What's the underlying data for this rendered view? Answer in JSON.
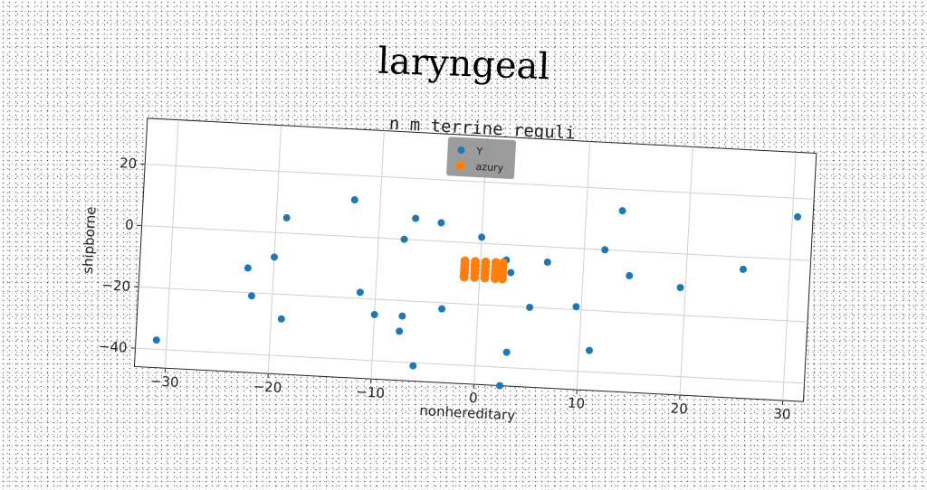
{
  "title": "laryngeal",
  "chart_data": {
    "type": "scatter",
    "title": "n m terrine reguli",
    "xlabel": "nonhereditary",
    "ylabel": "shipborne",
    "xlim": [
      -33,
      32
    ],
    "ylim": [
      -46,
      35
    ],
    "xticks": [
      -30,
      -20,
      -10,
      0,
      10,
      20,
      30
    ],
    "yticks": [
      -40,
      -20,
      0,
      20
    ],
    "xtick_labels": [
      "−30",
      "−20",
      "−10",
      "0",
      "10",
      "20",
      "30"
    ],
    "ytick_labels": [
      "−40",
      "−20",
      "0",
      "20"
    ],
    "grid": true,
    "legend_position": "top-center",
    "series": [
      {
        "name": "Y",
        "color": "#1f77b4",
        "points": [
          [
            -31,
            -37
          ],
          [
            -22.5,
            -12
          ],
          [
            -22,
            -21
          ],
          [
            -20,
            -8
          ],
          [
            -19,
            5
          ],
          [
            -19,
            -28
          ],
          [
            -12.5,
            12
          ],
          [
            -11.5,
            -18
          ],
          [
            -10,
            -25
          ],
          [
            -7.5,
            0
          ],
          [
            -7.3,
            -25
          ],
          [
            -7.5,
            -30
          ],
          [
            -6.5,
            7
          ],
          [
            -6,
            -41
          ],
          [
            -4,
            6
          ],
          [
            -3.5,
            -22
          ],
          [
            0,
            2
          ],
          [
            0.5,
            -7
          ],
          [
            2.5,
            -5
          ],
          [
            3,
            -9
          ],
          [
            5,
            -20
          ],
          [
            6.5,
            -5
          ],
          [
            9.5,
            -19
          ],
          [
            3,
            -35
          ],
          [
            11,
            -33
          ],
          [
            12,
            0
          ],
          [
            13.5,
            13
          ],
          [
            14.5,
            -8
          ],
          [
            19.5,
            -11
          ],
          [
            25.5,
            -4
          ],
          [
            30.5,
            14
          ],
          [
            2.5,
            -46
          ]
        ]
      },
      {
        "name": "azury",
        "color": "#ff7f0e",
        "points": [
          [
            -1.5,
            -6
          ],
          [
            -0.5,
            -6
          ],
          [
            0.5,
            -6
          ],
          [
            1.5,
            -6
          ],
          [
            2.2,
            -6
          ],
          [
            -1.5,
            -7.3
          ],
          [
            -0.5,
            -7.3
          ],
          [
            0.5,
            -7.3
          ],
          [
            1.5,
            -7.3
          ],
          [
            2.2,
            -7.3
          ],
          [
            -1.5,
            -8.6
          ],
          [
            -0.5,
            -8.6
          ],
          [
            0.5,
            -8.6
          ],
          [
            1.5,
            -8.6
          ],
          [
            2.2,
            -8.6
          ],
          [
            -1.5,
            -9.9
          ],
          [
            -0.5,
            -9.9
          ],
          [
            0.5,
            -9.9
          ],
          [
            1.5,
            -9.9
          ],
          [
            2.2,
            -9.9
          ],
          [
            -1.5,
            -11.2
          ],
          [
            -0.5,
            -11.2
          ],
          [
            0.5,
            -11.2
          ],
          [
            1.5,
            -11.2
          ],
          [
            2.2,
            -11.2
          ]
        ]
      }
    ]
  }
}
